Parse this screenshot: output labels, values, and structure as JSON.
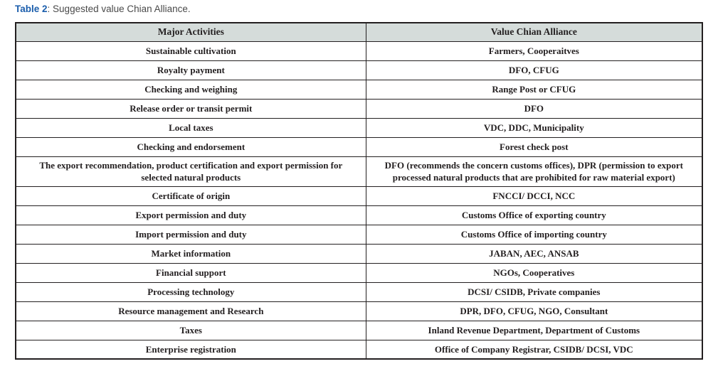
{
  "caption": {
    "label": "Table 2",
    "separator": ": ",
    "text": "Suggested value Chian Alliance."
  },
  "table": {
    "headers": [
      "Major Activities",
      "Value Chian Alliance"
    ],
    "rows": [
      {
        "activity": "Sustainable cultivation",
        "alliance": "Farmers, Cooperaitves"
      },
      {
        "activity": "Royalty payment",
        "alliance": "DFO, CFUG"
      },
      {
        "activity": "Checking and weighing",
        "alliance": "Range Post or CFUG"
      },
      {
        "activity": "Release order or transit permit",
        "alliance": "DFO"
      },
      {
        "activity": "Local taxes",
        "alliance": "VDC, DDC, Municipality"
      },
      {
        "activity": "Checking and endorsement",
        "alliance": "Forest check post"
      },
      {
        "activity": "The export recommendation, product certification and export permission for selected natural products",
        "alliance": "DFO (recommends the concern customs offices), DPR (permission to export processed natural products that are prohibited for raw material export)"
      },
      {
        "activity": "Certificate of origin",
        "alliance": "FNCCI/ DCCI, NCC"
      },
      {
        "activity": "Export permission and duty",
        "alliance": "Customs Office of exporting country"
      },
      {
        "activity": "Import permission and duty",
        "alliance": "Customs Office of importing country"
      },
      {
        "activity": "Market information",
        "alliance": "JABAN, AEC, ANSAB"
      },
      {
        "activity": "Financial support",
        "alliance": "NGOs, Cooperatives"
      },
      {
        "activity": "Processing technology",
        "alliance": "DCSI/ CSIDB, Private companies"
      },
      {
        "activity": "Resource management and Research",
        "alliance": "DPR, DFO, CFUG, NGO, Consultant"
      },
      {
        "activity": "Taxes",
        "alliance": "Inland Revenue Department, Department of Customs"
      },
      {
        "activity": "Enterprise registration",
        "alliance": "Office of Company Registrar, CSIDB/ DCSI, VDC"
      }
    ]
  },
  "colors": {
    "caption_label": "#1b5eac",
    "caption_text": "#4a4a4a",
    "header_bg": "#d5dcda",
    "border": "#231f20",
    "text": "#231f20",
    "page_bg": "#ffffff"
  }
}
